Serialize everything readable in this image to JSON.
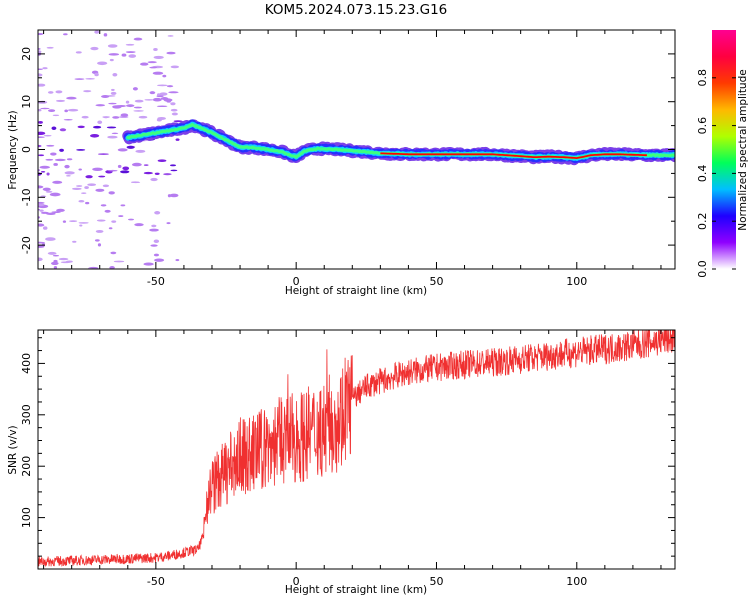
{
  "figure": {
    "title": "KOM5.2024.073.15.23.G16"
  },
  "chart_data": [
    {
      "type": "heatmap",
      "xlabel": "Height of straight line (km)",
      "ylabel": "Frequency (Hz)",
      "xlim": [
        -92,
        135
      ],
      "ylim": [
        -25,
        25
      ],
      "xticks": [
        -50,
        0,
        50,
        100
      ],
      "yticks": [
        -20,
        -10,
        0,
        10,
        20
      ],
      "colorbar": {
        "label": "Normalized spectral amplitude",
        "range": [
          0,
          1
        ],
        "ticks": [
          0.0,
          0.2,
          0.4,
          0.6,
          0.8
        ],
        "colormap": "gist_rainbow (magenta-blue-cyan-green-yellow-orange-red-pink)",
        "stops": [
          "#ffffff",
          "#8f00ff",
          "#1e00ff",
          "#00bfff",
          "#00ff5a",
          "#b0ff00",
          "#ffb800",
          "#ff3a00",
          "#ff0040",
          "#ff0090"
        ]
      },
      "ridge_frequency_hz": {
        "height_km": [
          -60,
          -50,
          -45,
          -40,
          -37,
          -34,
          -30,
          -25,
          -20,
          -15,
          -10,
          -5,
          -2,
          0,
          3,
          8,
          15,
          20,
          25,
          30,
          40,
          50,
          60,
          70,
          75,
          80,
          85,
          90,
          95,
          100,
          105,
          110,
          115,
          120,
          125,
          130,
          135
        ],
        "frequency": [
          2.5,
          3.5,
          4,
          4.5,
          5.2,
          4.5,
          3.5,
          2,
          0.5,
          0.4,
          0,
          -0.5,
          -1.2,
          -1.5,
          -0.3,
          0.2,
          0,
          -0.3,
          -0.5,
          -0.8,
          -1,
          -1,
          -1,
          -1,
          -1.2,
          -1.4,
          -1.6,
          -1.5,
          -1.6,
          -1.8,
          -1.2,
          -1,
          -1,
          -1.1,
          -1.2,
          -1.2,
          -1.2
        ]
      },
      "color": "#ff0000"
    },
    {
      "type": "line",
      "xlabel": "Height of straight line (km)",
      "ylabel": "SNR (v/v)",
      "xlim": [
        -92,
        135
      ],
      "ylim": [
        0,
        465
      ],
      "xticks": [
        -50,
        0,
        50,
        100
      ],
      "yticks": [
        100,
        200,
        300,
        400
      ],
      "color": "#f03030",
      "series": [
        {
          "x": [
            -92,
            -80,
            -70,
            -60,
            -50,
            -45,
            -40,
            -35,
            -33,
            -32,
            -30,
            -25,
            -20,
            -15,
            -10,
            -5,
            0,
            5,
            10,
            15,
            20,
            25,
            30,
            35,
            40,
            50,
            60,
            70,
            80,
            90,
            100,
            110,
            120,
            130,
            135
          ],
          "values": [
            14,
            16,
            18,
            20,
            22,
            26,
            32,
            38,
            65,
            130,
            160,
            190,
            215,
            225,
            240,
            250,
            255,
            265,
            275,
            290,
            330,
            355,
            365,
            375,
            383,
            392,
            398,
            402,
            408,
            415,
            422,
            428,
            435,
            445,
            450
          ]
        }
      ]
    }
  ]
}
